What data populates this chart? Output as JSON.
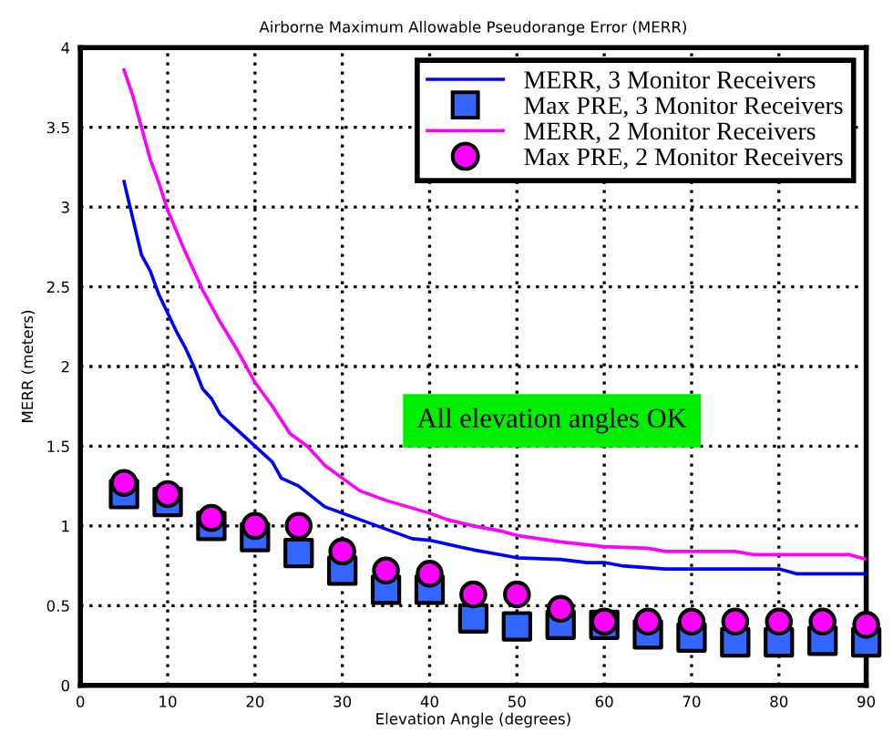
{
  "chart_data": {
    "type": "line",
    "title": "Airborne Maximum Allowable Pseudorange Error (MERR)",
    "xlabel": "Elevation Angle (degrees)",
    "ylabel": "MERR (meters)",
    "xlim": [
      0,
      90
    ],
    "ylim": [
      0,
      4
    ],
    "xticks": [
      0,
      10,
      20,
      30,
      40,
      50,
      60,
      70,
      80,
      90
    ],
    "yticks": [
      0,
      0.5,
      1,
      1.5,
      2,
      2.5,
      3,
      3.5,
      4
    ],
    "grid": true,
    "legend": "top right",
    "annotations": [
      "All elevation angles OK"
    ],
    "series": [
      {
        "name": "MERR, 3 Monitor Receivers",
        "color": "#0000ff",
        "marker": "none",
        "x": [
          5,
          7,
          8,
          9,
          11,
          12,
          13,
          14,
          15,
          16,
          18,
          20,
          22,
          23,
          25,
          28,
          30,
          35,
          38,
          40,
          45,
          48,
          50,
          55,
          58,
          60,
          62,
          67,
          80,
          82,
          90
        ],
        "values": [
          3.16,
          2.7,
          2.6,
          2.45,
          2.22,
          2.12,
          2.0,
          1.86,
          1.8,
          1.7,
          1.6,
          1.5,
          1.4,
          1.3,
          1.25,
          1.12,
          1.08,
          0.98,
          0.92,
          0.91,
          0.85,
          0.82,
          0.8,
          0.79,
          0.77,
          0.77,
          0.75,
          0.73,
          0.73,
          0.7,
          0.7
        ]
      },
      {
        "name": "Max PRE, 3 Monitor Receivers",
        "type": "scatter",
        "color": "#3366ff",
        "marker": "square",
        "x": [
          5,
          10,
          15,
          20,
          25,
          30,
          35,
          40,
          45,
          50,
          55,
          60,
          65,
          70,
          75,
          80,
          85,
          90
        ],
        "values": [
          1.2,
          1.15,
          1.0,
          0.93,
          0.83,
          0.72,
          0.6,
          0.6,
          0.42,
          0.37,
          0.38,
          0.38,
          0.32,
          0.3,
          0.27,
          0.27,
          0.28,
          0.27
        ]
      },
      {
        "name": "MERR, 2 Monitor Receivers",
        "color": "#ff00ff",
        "marker": "none",
        "x": [
          5,
          6,
          7,
          8,
          9,
          10,
          12,
          13,
          14,
          16,
          18,
          20,
          22,
          24,
          26,
          28,
          30,
          32,
          35,
          40,
          42,
          45,
          48,
          50,
          55,
          60,
          65,
          67,
          75,
          77,
          88,
          90
        ],
        "values": [
          3.86,
          3.7,
          3.5,
          3.3,
          3.15,
          2.98,
          2.72,
          2.6,
          2.48,
          2.28,
          2.1,
          1.9,
          1.75,
          1.58,
          1.5,
          1.38,
          1.3,
          1.22,
          1.16,
          1.08,
          1.04,
          1.0,
          0.97,
          0.94,
          0.9,
          0.87,
          0.86,
          0.84,
          0.84,
          0.82,
          0.82,
          0.79
        ]
      },
      {
        "name": "Max PRE, 2 Monitor Receivers",
        "type": "scatter",
        "color": "#ff00ff",
        "marker": "circle",
        "x": [
          5,
          10,
          15,
          20,
          25,
          30,
          35,
          40,
          45,
          50,
          55,
          60,
          65,
          70,
          75,
          80,
          85,
          90
        ],
        "values": [
          1.27,
          1.2,
          1.05,
          1.0,
          1.0,
          0.84,
          0.72,
          0.7,
          0.57,
          0.57,
          0.48,
          0.4,
          0.4,
          0.4,
          0.4,
          0.4,
          0.4,
          0.38
        ]
      }
    ]
  }
}
